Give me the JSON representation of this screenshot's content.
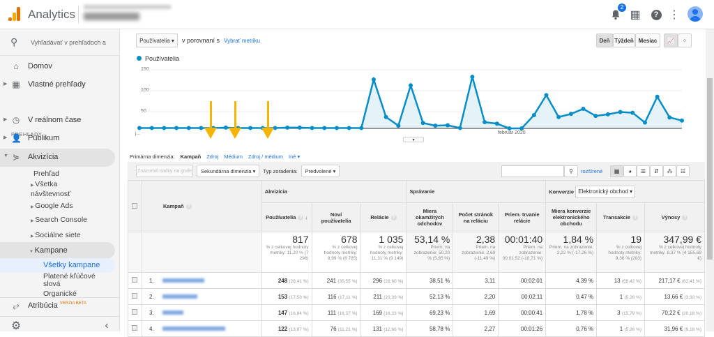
{
  "app": {
    "name": "Analytics",
    "notifications": "2"
  },
  "sidebar": {
    "search_placeholder": "Vyhľadávať v prehľadoch a p",
    "home": "Domov",
    "custom": "Vlastné prehľady",
    "section": "PREHĽADY",
    "realtime": "V reálnom čase",
    "audience": "Publikum",
    "acquisition": "Akvizícia",
    "overview": "Prehľad",
    "all_traffic": "Všetka návštevnosť",
    "google_ads": "Google Ads",
    "search_console": "Search Console",
    "social": "Sociálne siete",
    "campaigns": "Kampane",
    "all_campaigns": "Všetky kampane",
    "paid_keywords": "Platené kľúčové slová",
    "organic": "Organické",
    "attribution": "Atribúcia",
    "beta": "VERZIA BETA"
  },
  "toolbar": {
    "metric": "Používatelia",
    "compare": "v porovnaní s",
    "choose_metric": "Vybrať metriku",
    "day": "Deň",
    "week": "Týždeň",
    "month": "Mesiac"
  },
  "dimension": {
    "label": "Primárna dimenzia:",
    "active": "Kampaň",
    "source": "Zdroj",
    "medium": "Médium",
    "source_medium": "Zdroj / médium",
    "other": "Iné"
  },
  "controls": {
    "plot_rows": "Znázorniť riadky na grafe",
    "secondary": "Sekundárna dimenzia",
    "sort_type": "Typ zoradenia:",
    "sort_value": "Predvolené",
    "advanced": "rozšírené"
  },
  "chart_data": {
    "type": "area",
    "title": "",
    "legend": [
      "Používatelia"
    ],
    "yticks": [
      "150",
      "100",
      "50"
    ],
    "ylim": [
      0,
      150
    ],
    "xlabel_left": "j...",
    "xlabel_mid": "február 2020",
    "values": [
      1,
      1,
      1,
      1,
      1,
      1,
      1,
      2,
      1,
      1,
      1,
      1,
      2,
      2,
      1,
      1,
      1,
      1,
      1,
      125,
      29,
      7,
      110,
      14,
      7,
      8,
      1,
      132,
      16,
      12,
      0,
      0,
      34,
      85,
      29,
      37,
      50,
      32,
      36,
      42,
      40,
      15,
      81,
      28,
      20
    ]
  },
  "table": {
    "groups": {
      "acq": "Akvizícia",
      "beh": "Správanie",
      "conv": "Konverzie",
      "conv_select": "Elektronický obchod"
    },
    "headers": [
      "Kampaň",
      "Používatelia",
      "Noví používatelia",
      "Relácie",
      "Miera okamžitých odchodov",
      "Počet stránok na reláciu",
      "Priem. trvanie relácie",
      "Miera konverzie elektronického obchodu",
      "Transakcie",
      "Výnosy"
    ],
    "totals": [
      {
        "v": "817",
        "s": "% z celkovej hodnoty metriky: 11,20 % (7 296)"
      },
      {
        "v": "678",
        "s": "% z celkovej hodnoty metriky: 9,99 % (6 785)"
      },
      {
        "v": "1 035",
        "s": "% z celkovej hodnoty metriky: 11,31 % (9 149)"
      },
      {
        "v": "53,14 %",
        "s": "Priem. na zobrazenie: 50,20 % (5,85 %)"
      },
      {
        "v": "2,38",
        "s": "Priem. na zobrazenie: 2,69 (-11,49 %)"
      },
      {
        "v": "00:01:40",
        "s": "Priem. na zobrazenie: 00:01:52 (-10,71 %)"
      },
      {
        "v": "1,84 %",
        "s": "Priem. na zobrazenie: 2,22 % (-17,26 %)"
      },
      {
        "v": "19",
        "s": "% z celkovej hodnoty metriky: 9,36 % (203)"
      },
      {
        "v": "347,99 €",
        "s": "% z celkovej hodnoty metriky: 8,37 % (4 155,69 €)"
      }
    ],
    "rows": [
      {
        "n": "1.",
        "u": "248",
        "up": "(28,41 %)",
        "nu": "241",
        "nup": "(35,55 %)",
        "s": "296",
        "sp": "(28,60 %)",
        "b": "38,51 %",
        "p": "3,11",
        "d": "00:02:01",
        "c": "4,39 %",
        "t": "13",
        "tp": "(68,42 %)",
        "r": "217,17 €",
        "rp": "(62,41 %)"
      },
      {
        "n": "2.",
        "u": "153",
        "up": "(17,53 %)",
        "nu": "116",
        "nup": "(17,11 %)",
        "s": "211",
        "sp": "(20,39 %)",
        "b": "52,13 %",
        "p": "2,20",
        "d": "00:02:11",
        "c": "0,47 %",
        "t": "1",
        "tp": "(5,26 %)",
        "r": "13,66 €",
        "rp": "(3,93 %)"
      },
      {
        "n": "3.",
        "u": "147",
        "up": "(16,84 %)",
        "nu": "111",
        "nup": "(16,37 %)",
        "s": "169",
        "sp": "(16,33 %)",
        "b": "69,23 %",
        "p": "1,69",
        "d": "00:00:41",
        "c": "1,78 %",
        "t": "3",
        "tp": "(15,79 %)",
        "r": "70,22 €",
        "rp": "(20,18 %)"
      },
      {
        "n": "4.",
        "u": "122",
        "up": "(13,97 %)",
        "nu": "76",
        "nup": "(11,21 %)",
        "s": "131",
        "sp": "(12,66 %)",
        "b": "58,78 %",
        "p": "2,27",
        "d": "00:01:26",
        "c": "0,76 %",
        "t": "1",
        "tp": "(5,26 %)",
        "r": "31,96 €",
        "rp": "(9,18 %)"
      }
    ]
  }
}
